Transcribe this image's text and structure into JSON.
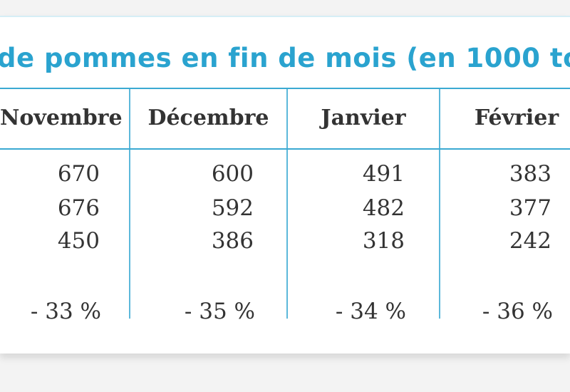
{
  "title": "de pommes en fin de mois (en 1000 to",
  "columns": [
    {
      "header": "Novembre",
      "values": [
        "670",
        "676",
        "450"
      ],
      "variation": "- 33 %"
    },
    {
      "header": "Décembre",
      "values": [
        "600",
        "592",
        "386"
      ],
      "variation": "- 35 %"
    },
    {
      "header": "Janvier",
      "values": [
        "491",
        "482",
        "318"
      ],
      "variation": "- 34 %"
    },
    {
      "header": "Février",
      "values": [
        "383",
        "377",
        "242"
      ],
      "variation": "- 36 %"
    }
  ],
  "colors": {
    "title": "#2aa3cf",
    "rules": "#3aa9d2",
    "text": "#333333"
  }
}
